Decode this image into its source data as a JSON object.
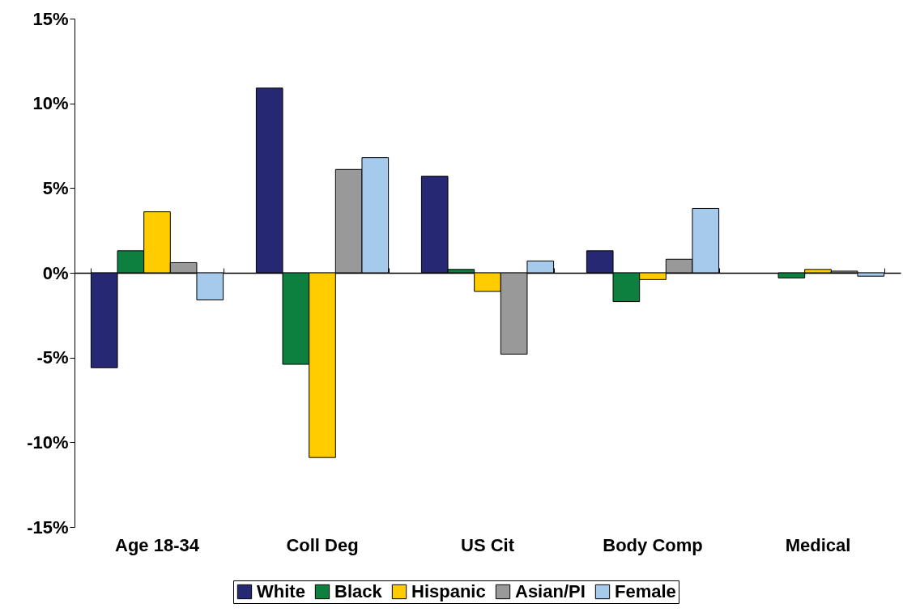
{
  "chart_data": {
    "type": "bar",
    "categories": [
      "Age 18-34",
      "Coll Deg",
      "US Cit",
      "Body Comp",
      "Medical"
    ],
    "series": [
      {
        "name": "White",
        "color": "#262873",
        "values": [
          -5.6,
          10.9,
          5.7,
          1.3,
          null
        ]
      },
      {
        "name": "Black",
        "color": "#0d8040",
        "values": [
          1.3,
          -5.4,
          0.2,
          -1.7,
          -0.3
        ]
      },
      {
        "name": "Hispanic",
        "color": "#ffcc00",
        "values": [
          3.6,
          -10.9,
          -1.1,
          -0.4,
          0.2
        ]
      },
      {
        "name": "Asian/PI",
        "color": "#999999",
        "values": [
          0.6,
          6.1,
          -4.8,
          0.8,
          0.1
        ]
      },
      {
        "name": "Female",
        "color": "#a6caec",
        "values": [
          -1.6,
          6.8,
          0.7,
          3.8,
          -0.2
        ]
      }
    ],
    "ylim": [
      -15,
      15
    ],
    "yticks": [
      {
        "value": -15,
        "label": "-15%"
      },
      {
        "value": -10,
        "label": "-10%"
      },
      {
        "value": -5,
        "label": "-5%"
      },
      {
        "value": 0,
        "label": "0%"
      },
      {
        "value": 5,
        "label": "5%"
      },
      {
        "value": 10,
        "label": "10%"
      },
      {
        "value": 15,
        "label": "15%"
      }
    ],
    "legend": "bottom"
  }
}
